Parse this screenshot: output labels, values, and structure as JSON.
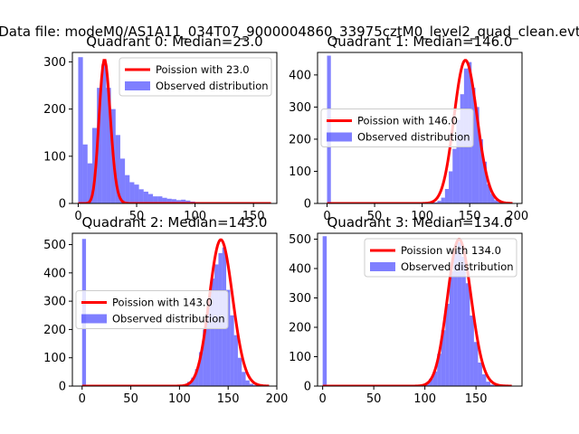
{
  "figure_title": "Data file: modeM0/AS1A11_034T07_9000004860_33975cztM0_level2_quad_clean.evt",
  "chart_data": [
    {
      "type": "bar",
      "title": "Quadrant 0: Median=23.0",
      "legend": {
        "poisson": "Poission with 23.0",
        "observed": "Observed distribution",
        "placement": "upper right"
      },
      "xlim": [
        -5,
        170
      ],
      "ylim": [
        0,
        320
      ],
      "xticks": [
        0,
        50,
        100,
        150
      ],
      "yticks": [
        0,
        100,
        200,
        300
      ],
      "bin_width": 4,
      "hist_x": [
        0,
        4,
        8,
        12,
        16,
        20,
        24,
        28,
        32,
        36,
        40,
        44,
        48,
        52,
        56,
        60,
        64,
        68,
        72,
        76,
        80,
        84,
        88,
        92,
        96,
        100,
        104,
        108,
        112,
        116,
        120,
        124
      ],
      "hist_y": [
        310,
        125,
        85,
        160,
        245,
        295,
        245,
        200,
        145,
        95,
        60,
        45,
        40,
        30,
        25,
        20,
        15,
        15,
        12,
        10,
        9,
        7,
        8,
        6,
        4,
        3,
        2,
        2,
        2,
        1,
        1,
        1
      ],
      "poisson_mean": 23.0,
      "poisson_scale": 3660,
      "curve_xmax": 165
    },
    {
      "type": "bar",
      "title": "Quadrant 1: Median=146.0",
      "legend": {
        "poisson": "Poission with 146.0",
        "observed": "Observed distribution",
        "placement": "center left"
      },
      "xlim": [
        -10,
        205
      ],
      "ylim": [
        0,
        470
      ],
      "xticks": [
        0,
        50,
        100,
        150,
        200
      ],
      "yticks": [
        0,
        100,
        200,
        300,
        400
      ],
      "bin_width": 4,
      "hist_x": [
        0,
        112,
        116,
        120,
        124,
        128,
        132,
        136,
        140,
        144,
        148,
        152,
        156,
        160,
        164,
        168,
        172,
        176,
        180,
        184
      ],
      "hist_y": [
        460,
        3,
        8,
        18,
        45,
        100,
        170,
        260,
        340,
        420,
        440,
        360,
        300,
        200,
        130,
        60,
        30,
        10,
        4,
        2
      ],
      "poisson_mean": 146.0,
      "poisson_scale": 13500,
      "curve_xmax": 195
    },
    {
      "type": "bar",
      "title": "Quadrant 2: Median=143.0",
      "legend": {
        "poisson": "Poission with 143.0",
        "observed": "Observed distribution",
        "placement": "center left"
      },
      "xlim": [
        -10,
        200
      ],
      "ylim": [
        0,
        540
      ],
      "xticks": [
        0,
        50,
        100,
        150,
        200
      ],
      "yticks": [
        0,
        100,
        200,
        300,
        400,
        500
      ],
      "bin_width": 4,
      "hist_x": [
        0,
        104,
        108,
        112,
        116,
        120,
        124,
        128,
        132,
        136,
        140,
        144,
        148,
        152,
        156,
        160,
        164,
        168,
        172,
        176,
        180
      ],
      "hist_y": [
        520,
        5,
        15,
        30,
        60,
        120,
        200,
        310,
        380,
        430,
        470,
        490,
        340,
        250,
        180,
        100,
        50,
        20,
        8,
        3,
        1
      ],
      "poisson_mean": 143.0,
      "poisson_scale": 15500,
      "curve_xmax": 192
    },
    {
      "type": "bar",
      "title": "Quadrant 3: Median=134.0",
      "legend": {
        "poisson": "Poission with 134.0",
        "observed": "Observed distribution",
        "placement": "upper right"
      },
      "xlim": [
        -5,
        195
      ],
      "ylim": [
        0,
        520
      ],
      "xticks": [
        0,
        50,
        100,
        150
      ],
      "yticks": [
        0,
        100,
        200,
        300,
        400,
        500
      ],
      "bin_width": 4,
      "hist_x": [
        0,
        96,
        100,
        104,
        108,
        112,
        116,
        120,
        124,
        128,
        132,
        136,
        140,
        144,
        148,
        152,
        156,
        160,
        164,
        168
      ],
      "hist_y": [
        510,
        5,
        10,
        25,
        50,
        110,
        190,
        280,
        390,
        460,
        490,
        440,
        350,
        240,
        150,
        80,
        40,
        15,
        5,
        2
      ],
      "poisson_mean": 134.0,
      "poisson_scale": 14500,
      "curve_xmax": 185
    }
  ]
}
